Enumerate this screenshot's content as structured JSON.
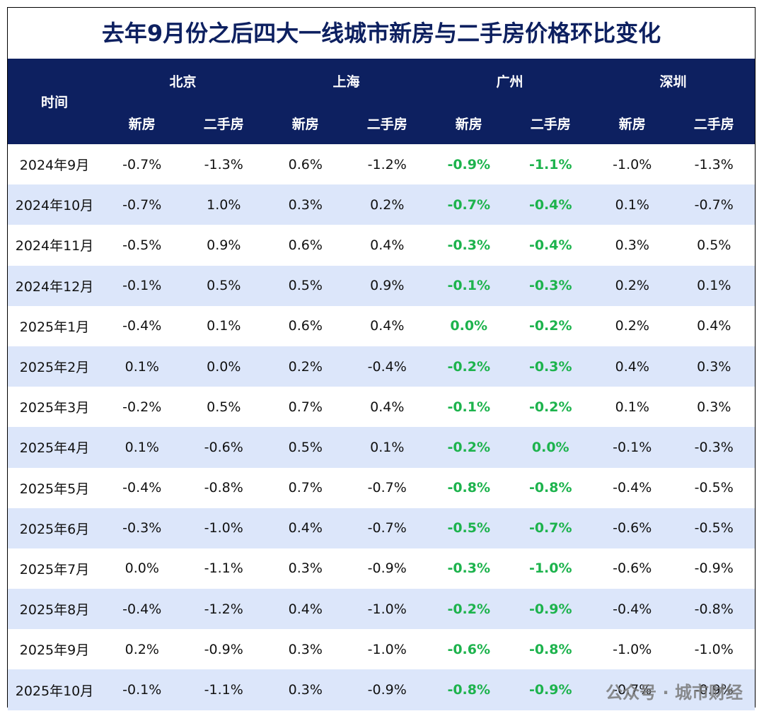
{
  "title": "去年9月份之后四大一线城市新房与二手房价格环比变化",
  "header": {
    "time": "时间",
    "cities": [
      "北京",
      "上海",
      "广州",
      "深圳"
    ],
    "sub": [
      "新房",
      "二手房"
    ]
  },
  "table": {
    "rows": [
      [
        "2024年9月",
        "-0.7%",
        "-1.3%",
        "0.6%",
        "-1.2%",
        "-0.9%",
        "-1.1%",
        "-1.0%",
        "-1.3%"
      ],
      [
        "2024年10月",
        "-0.7%",
        "1.0%",
        "0.3%",
        "0.2%",
        "-0.7%",
        "-0.4%",
        "0.1%",
        "-0.7%"
      ],
      [
        "2024年11月",
        "-0.5%",
        "0.9%",
        "0.6%",
        "0.4%",
        "-0.3%",
        "-0.4%",
        "0.3%",
        "0.5%"
      ],
      [
        "2024年12月",
        "-0.1%",
        "0.5%",
        "0.5%",
        "0.9%",
        "-0.1%",
        "-0.3%",
        "0.2%",
        "0.1%"
      ],
      [
        "2025年1月",
        "-0.4%",
        "0.1%",
        "0.6%",
        "0.4%",
        "0.0%",
        "-0.2%",
        "0.2%",
        "0.4%"
      ],
      [
        "2025年2月",
        "0.1%",
        "0.0%",
        "0.2%",
        "-0.4%",
        "-0.2%",
        "-0.3%",
        "0.4%",
        "0.3%"
      ],
      [
        "2025年3月",
        "-0.2%",
        "0.5%",
        "0.7%",
        "0.4%",
        "-0.1%",
        "-0.2%",
        "0.1%",
        "0.3%"
      ],
      [
        "2025年4月",
        "0.1%",
        "-0.6%",
        "0.5%",
        "0.1%",
        "-0.2%",
        "0.0%",
        "-0.1%",
        "-0.3%"
      ],
      [
        "2025年5月",
        "-0.4%",
        "-0.8%",
        "0.7%",
        "-0.7%",
        "-0.8%",
        "-0.8%",
        "-0.4%",
        "-0.5%"
      ],
      [
        "2025年6月",
        "-0.3%",
        "-1.0%",
        "0.4%",
        "-0.7%",
        "-0.5%",
        "-0.7%",
        "-0.6%",
        "-0.5%"
      ],
      [
        "2025年7月",
        "0.0%",
        "-1.1%",
        "0.3%",
        "-0.9%",
        "-0.3%",
        "-1.0%",
        "-0.6%",
        "-0.9%"
      ],
      [
        "2025年8月",
        "-0.4%",
        "-1.2%",
        "0.4%",
        "-1.0%",
        "-0.2%",
        "-0.9%",
        "-0.4%",
        "-0.8%"
      ],
      [
        "2025年9月",
        "0.2%",
        "-0.9%",
        "0.3%",
        "-1.0%",
        "-0.6%",
        "-0.8%",
        "-1.0%",
        "-1.0%"
      ],
      [
        "2025年10月",
        "-0.1%",
        "-1.1%",
        "0.3%",
        "-0.9%",
        "-0.8%",
        "-0.9%",
        "-0.7%",
        "-0.9%"
      ]
    ]
  },
  "watermark": "公众号 · 城市财经"
}
